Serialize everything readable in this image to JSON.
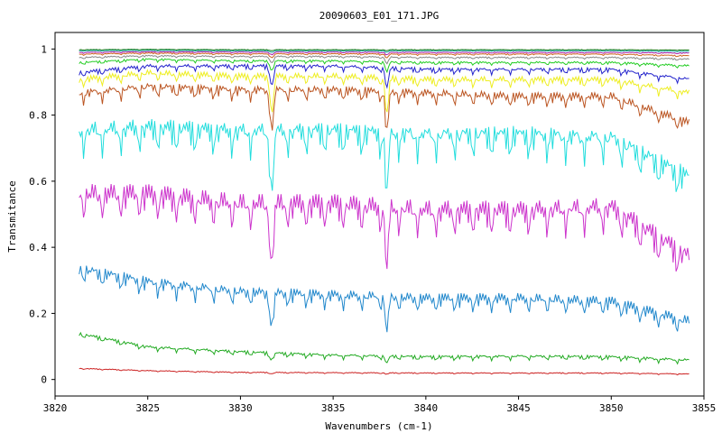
{
  "chart_data": {
    "type": "line",
    "title": "20090603_E01_171.JPG",
    "xlabel": "Wavenumbers (cm-1)",
    "ylabel": "Transmitance",
    "xlim": [
      3820,
      3855
    ],
    "ylim": [
      -0.05,
      1.05
    ],
    "xticks": [
      "3820",
      "3825",
      "3830",
      "3835",
      "3840",
      "3845",
      "3850",
      "3855"
    ],
    "yticks": [
      "0",
      "0.2",
      "0.4",
      "0.6",
      "0.8",
      "1"
    ],
    "grid": false,
    "legend": "none",
    "x_range_data": [
      3821.3,
      3854.2
    ],
    "deep_dips": [
      3831.7,
      3837.9
    ],
    "series": [
      {
        "color": "#cc2222",
        "values": [
          [
            3821.3,
            0.034
          ],
          [
            3825,
            0.027
          ],
          [
            3830,
            0.022
          ],
          [
            3835,
            0.021
          ],
          [
            3840,
            0.02
          ],
          [
            3845,
            0.02
          ],
          [
            3850,
            0.02
          ],
          [
            3854.2,
            0.017
          ]
        ],
        "ripple": 0.003,
        "dip": 0.004
      },
      {
        "color": "#22aa22",
        "values": [
          [
            3821.3,
            0.14
          ],
          [
            3825,
            0.1
          ],
          [
            3830,
            0.085
          ],
          [
            3835,
            0.075
          ],
          [
            3840,
            0.07
          ],
          [
            3845,
            0.072
          ],
          [
            3850,
            0.07
          ],
          [
            3854.2,
            0.06
          ]
        ],
        "ripple": 0.012,
        "dip": 0.02
      },
      {
        "color": "#2288cc",
        "values": [
          [
            3821.3,
            0.34
          ],
          [
            3825,
            0.3
          ],
          [
            3830,
            0.27
          ],
          [
            3835,
            0.26
          ],
          [
            3840,
            0.25
          ],
          [
            3845,
            0.25
          ],
          [
            3850,
            0.24
          ],
          [
            3854.2,
            0.18
          ]
        ],
        "ripple": 0.045,
        "dip": 0.1
      },
      {
        "color": "#cc33cc",
        "values": [
          [
            3821.3,
            0.57
          ],
          [
            3825,
            0.57
          ],
          [
            3830,
            0.54
          ],
          [
            3835,
            0.54
          ],
          [
            3840,
            0.52
          ],
          [
            3845,
            0.52
          ],
          [
            3850,
            0.53
          ],
          [
            3854.2,
            0.38
          ]
        ],
        "ripple": 0.085,
        "dip": 0.18
      },
      {
        "color": "#22dddd",
        "values": [
          [
            3821.3,
            0.76
          ],
          [
            3825,
            0.77
          ],
          [
            3830,
            0.76
          ],
          [
            3835,
            0.76
          ],
          [
            3840,
            0.75
          ],
          [
            3845,
            0.75
          ],
          [
            3850,
            0.74
          ],
          [
            3854.2,
            0.62
          ]
        ],
        "ripple": 0.08,
        "dip": 0.18
      },
      {
        "color": "#bb5522",
        "values": [
          [
            3821.3,
            0.87
          ],
          [
            3825,
            0.89
          ],
          [
            3830,
            0.88
          ],
          [
            3835,
            0.88
          ],
          [
            3840,
            0.87
          ],
          [
            3845,
            0.86
          ],
          [
            3850,
            0.86
          ],
          [
            3854.2,
            0.78
          ]
        ],
        "ripple": 0.035,
        "dip": 0.12
      },
      {
        "color": "#eeee22",
        "values": [
          [
            3821.3,
            0.91
          ],
          [
            3825,
            0.93
          ],
          [
            3830,
            0.92
          ],
          [
            3835,
            0.92
          ],
          [
            3840,
            0.91
          ],
          [
            3845,
            0.91
          ],
          [
            3850,
            0.91
          ],
          [
            3854.2,
            0.87
          ]
        ],
        "ripple": 0.025,
        "dip": 0.11
      },
      {
        "color": "#2222cc",
        "values": [
          [
            3821.3,
            0.93
          ],
          [
            3825,
            0.95
          ],
          [
            3830,
            0.95
          ],
          [
            3835,
            0.95
          ],
          [
            3840,
            0.94
          ],
          [
            3845,
            0.94
          ],
          [
            3850,
            0.94
          ],
          [
            3854.2,
            0.91
          ]
        ],
        "ripple": 0.015,
        "dip": 0.06
      },
      {
        "color": "#22cc22",
        "values": [
          [
            3821.3,
            0.96
          ],
          [
            3825,
            0.97
          ],
          [
            3830,
            0.965
          ],
          [
            3835,
            0.965
          ],
          [
            3840,
            0.96
          ],
          [
            3845,
            0.96
          ],
          [
            3850,
            0.96
          ],
          [
            3854.2,
            0.95
          ]
        ],
        "ripple": 0.008,
        "dip": 0.03
      },
      {
        "color": "#888888",
        "values": [
          [
            3821.3,
            0.975
          ],
          [
            3825,
            0.98
          ],
          [
            3830,
            0.978
          ],
          [
            3835,
            0.978
          ],
          [
            3840,
            0.975
          ],
          [
            3845,
            0.975
          ],
          [
            3850,
            0.975
          ],
          [
            3854.2,
            0.97
          ]
        ],
        "ripple": 0.005,
        "dip": 0.02
      },
      {
        "color": "#cc6622",
        "values": [
          [
            3821.3,
            0.985
          ],
          [
            3825,
            0.988
          ],
          [
            3830,
            0.986
          ],
          [
            3835,
            0.986
          ],
          [
            3840,
            0.985
          ],
          [
            3845,
            0.985
          ],
          [
            3850,
            0.985
          ],
          [
            3854.2,
            0.98
          ]
        ],
        "ripple": 0.004,
        "dip": 0.012
      },
      {
        "color": "#aa22aa",
        "values": [
          [
            3821.3,
            0.99
          ],
          [
            3825,
            0.992
          ],
          [
            3830,
            0.991
          ],
          [
            3835,
            0.991
          ],
          [
            3840,
            0.99
          ],
          [
            3845,
            0.99
          ],
          [
            3850,
            0.99
          ],
          [
            3854.2,
            0.988
          ]
        ],
        "ripple": 0.003,
        "dip": 0.008
      },
      {
        "color": "#22aaaa",
        "values": [
          [
            3821.3,
            0.995
          ],
          [
            3825,
            0.996
          ],
          [
            3830,
            0.995
          ],
          [
            3835,
            0.995
          ],
          [
            3840,
            0.995
          ],
          [
            3845,
            0.995
          ],
          [
            3850,
            0.995
          ],
          [
            3854.2,
            0.993
          ]
        ],
        "ripple": 0.002,
        "dip": 0.005
      },
      {
        "color": "#117711",
        "values": [
          [
            3821.3,
            0.998
          ],
          [
            3825,
            0.999
          ],
          [
            3830,
            0.998
          ],
          [
            3835,
            0.998
          ],
          [
            3840,
            0.998
          ],
          [
            3845,
            0.998
          ],
          [
            3850,
            0.998
          ],
          [
            3854.2,
            0.997
          ]
        ],
        "ripple": 0.0015,
        "dip": 0.003
      }
    ]
  }
}
